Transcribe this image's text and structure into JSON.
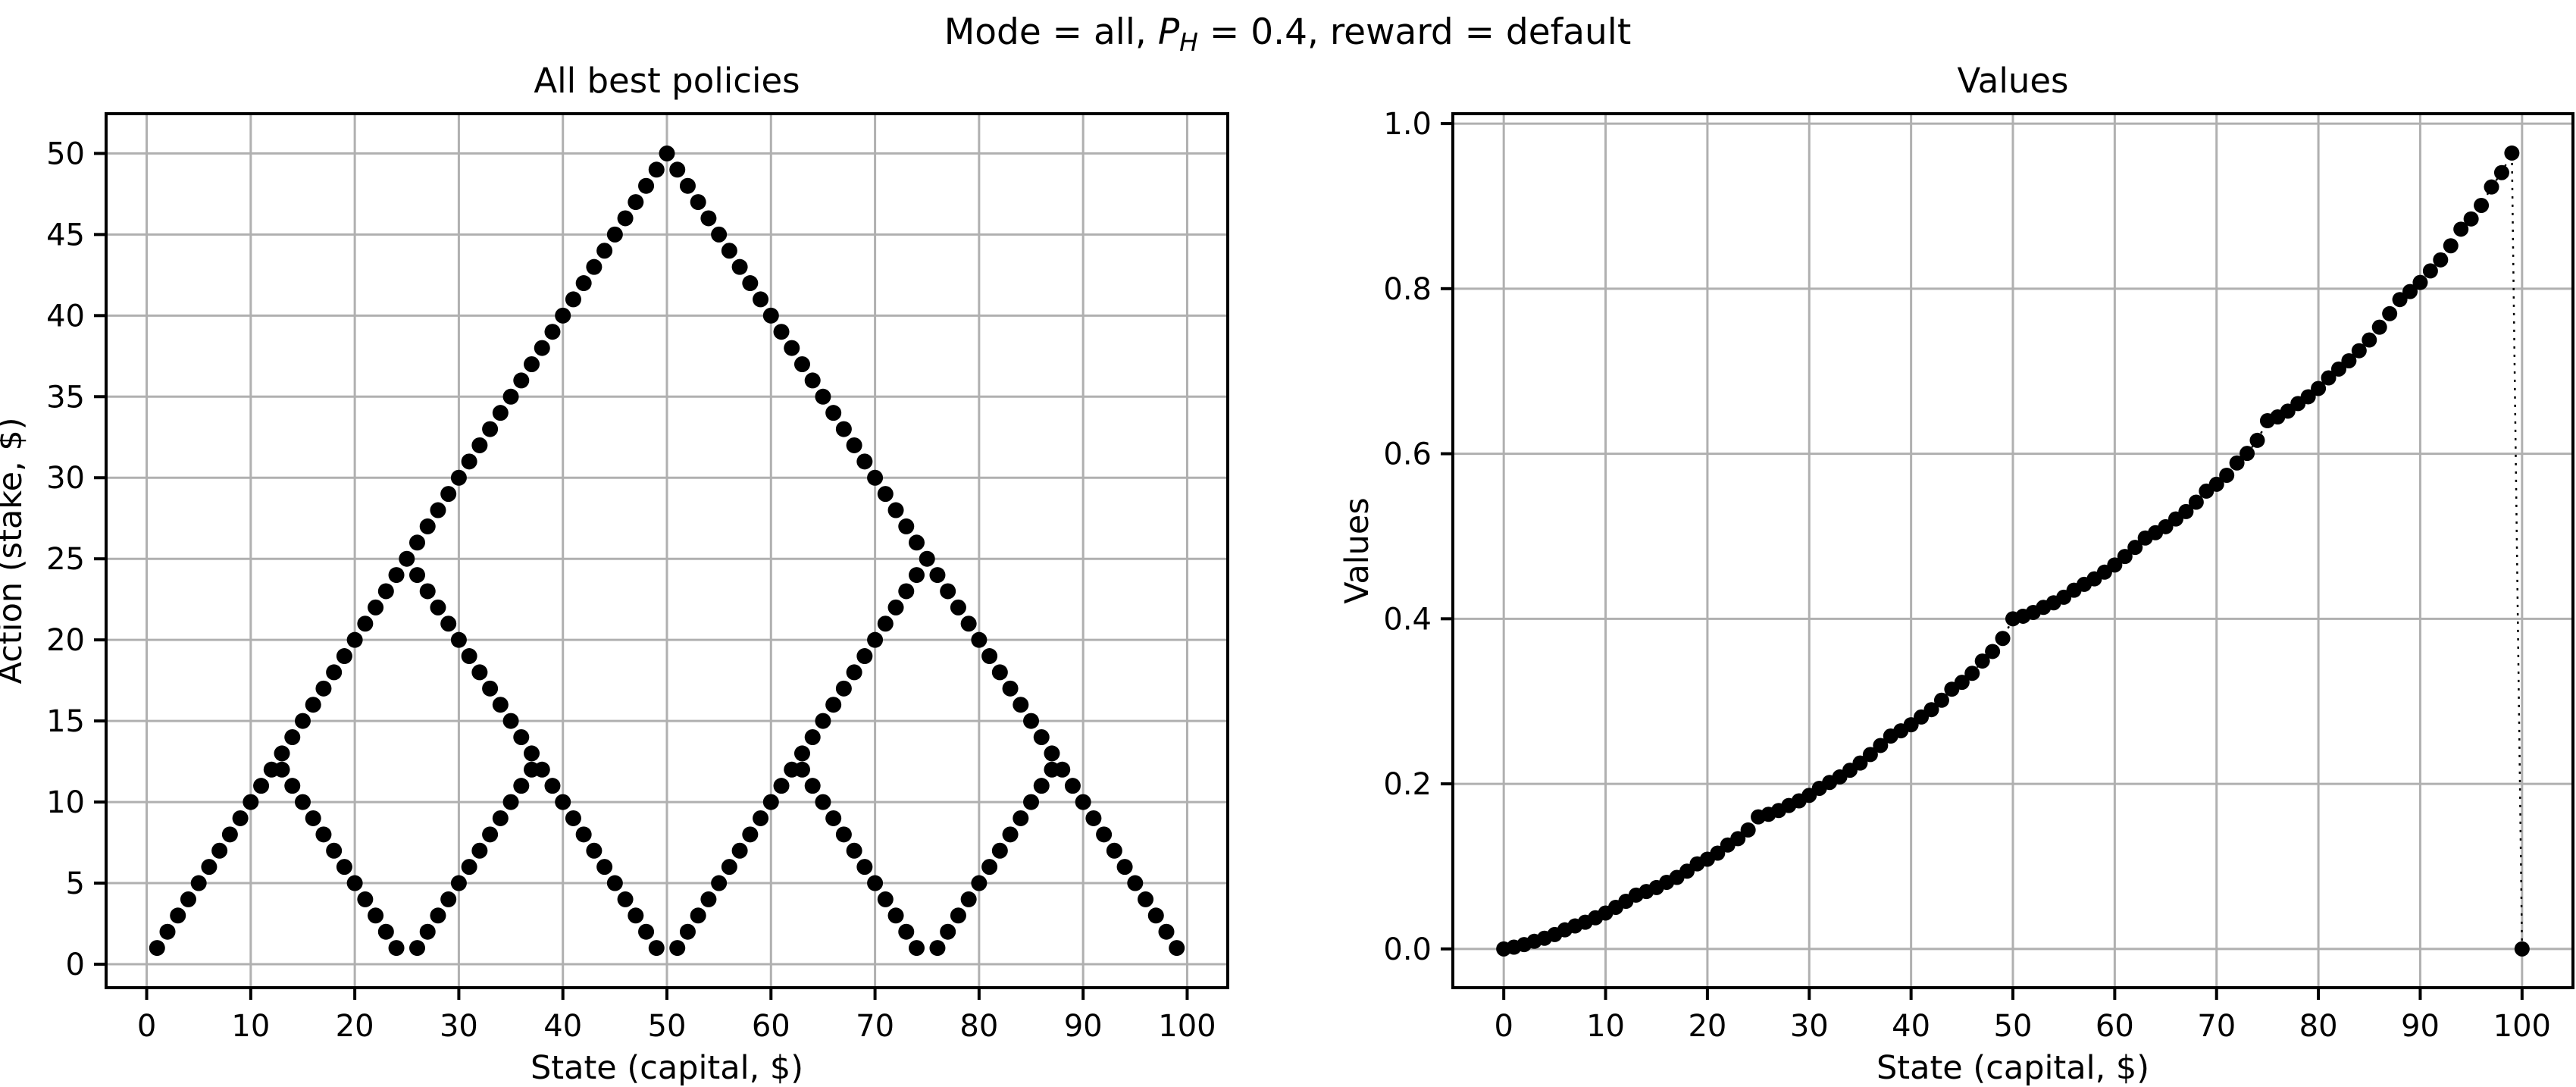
{
  "figure": {
    "suptitle": {
      "plain": "Mode = all, P_H = 0.4, reward = default",
      "parts": [
        {
          "text": "Mode = all, ",
          "style": "normal"
        },
        {
          "text": "P",
          "style": "italic"
        },
        {
          "text": "H",
          "style": "italic-sub"
        },
        {
          "text": " = 0.4, reward = default",
          "style": "normal"
        }
      ]
    },
    "colors": {
      "background": "#ffffff",
      "marker": "#000000",
      "grid": "#b0b0b0",
      "spine": "#000000",
      "text": "#000000"
    }
  },
  "chart_data": [
    {
      "type": "scatter",
      "title": "All best policies",
      "xlabel": "State (capital, $)",
      "ylabel": "Action (stake, $)",
      "xlim": [
        -3.9,
        103.9
      ],
      "ylim": [
        -1.45,
        52.45
      ],
      "grid": true,
      "marker": "filled-black-circle",
      "xticks": {
        "values": [
          0,
          10,
          20,
          30,
          40,
          50,
          60,
          70,
          80,
          90,
          100
        ],
        "labels": [
          "0",
          "10",
          "20",
          "30",
          "40",
          "50",
          "60",
          "70",
          "80",
          "90",
          "100"
        ]
      },
      "yticks": {
        "values": [
          0,
          5,
          10,
          15,
          20,
          25,
          30,
          35,
          40,
          45,
          50
        ],
        "labels": [
          "0",
          "5",
          "10",
          "15",
          "20",
          "25",
          "30",
          "35",
          "40",
          "45",
          "50"
        ]
      },
      "states_start_at": 1,
      "actions_by_state": [
        [
          1
        ],
        [
          2
        ],
        [
          3
        ],
        [
          4
        ],
        [
          5
        ],
        [
          6
        ],
        [
          7
        ],
        [
          8
        ],
        [
          9
        ],
        [
          10
        ],
        [
          11
        ],
        [
          12
        ],
        [
          13,
          12
        ],
        [
          14,
          11
        ],
        [
          15,
          10
        ],
        [
          16,
          9
        ],
        [
          17,
          8
        ],
        [
          18,
          7
        ],
        [
          19,
          6
        ],
        [
          20,
          5
        ],
        [
          21,
          4
        ],
        [
          22,
          3
        ],
        [
          23,
          2
        ],
        [
          24,
          1
        ],
        [
          25
        ],
        [
          26,
          24,
          1
        ],
        [
          27,
          23,
          2
        ],
        [
          28,
          22,
          3
        ],
        [
          29,
          21,
          4
        ],
        [
          30,
          20,
          5
        ],
        [
          31,
          19,
          6
        ],
        [
          32,
          18,
          7
        ],
        [
          33,
          17,
          8
        ],
        [
          34,
          16,
          9
        ],
        [
          35,
          15,
          10
        ],
        [
          36,
          14,
          11
        ],
        [
          37,
          13,
          12
        ],
        [
          38,
          12
        ],
        [
          39,
          11
        ],
        [
          40,
          10
        ],
        [
          41,
          9
        ],
        [
          42,
          8
        ],
        [
          43,
          7
        ],
        [
          44,
          6
        ],
        [
          45,
          5
        ],
        [
          46,
          4
        ],
        [
          47,
          3
        ],
        [
          48,
          2
        ],
        [
          49,
          1
        ],
        [
          50
        ],
        [
          49,
          1
        ],
        [
          48,
          2
        ],
        [
          47,
          3
        ],
        [
          46,
          4
        ],
        [
          45,
          5
        ],
        [
          44,
          6
        ],
        [
          43,
          7
        ],
        [
          42,
          8
        ],
        [
          41,
          9
        ],
        [
          40,
          10
        ],
        [
          39,
          11
        ],
        [
          38,
          12
        ],
        [
          37,
          13,
          12
        ],
        [
          36,
          14,
          11
        ],
        [
          35,
          15,
          10
        ],
        [
          34,
          16,
          9
        ],
        [
          33,
          17,
          8
        ],
        [
          32,
          18,
          7
        ],
        [
          31,
          19,
          6
        ],
        [
          30,
          20,
          5
        ],
        [
          29,
          21,
          4
        ],
        [
          28,
          22,
          3
        ],
        [
          27,
          23,
          2
        ],
        [
          26,
          24,
          1
        ],
        [
          25
        ],
        [
          24,
          1
        ],
        [
          23,
          2
        ],
        [
          22,
          3
        ],
        [
          21,
          4
        ],
        [
          20,
          5
        ],
        [
          19,
          6
        ],
        [
          18,
          7
        ],
        [
          17,
          8
        ],
        [
          16,
          9
        ],
        [
          15,
          10
        ],
        [
          14,
          11
        ],
        [
          13,
          12
        ],
        [
          12
        ],
        [
          11
        ],
        [
          10
        ],
        [
          9
        ],
        [
          8
        ],
        [
          7
        ],
        [
          6
        ],
        [
          5
        ],
        [
          4
        ],
        [
          3
        ],
        [
          2
        ],
        [
          1
        ]
      ]
    },
    {
      "type": "line",
      "title": "Values",
      "xlabel": "State (capital, $)",
      "ylabel": "Values",
      "xlim": [
        -5,
        105
      ],
      "ylim": [
        -0.047,
        1.012
      ],
      "grid": true,
      "marker": "filled-black-circle",
      "linestyle": "dotted",
      "xticks": {
        "values": [
          0,
          10,
          20,
          30,
          40,
          50,
          60,
          70,
          80,
          90,
          100
        ],
        "labels": [
          "0",
          "10",
          "20",
          "30",
          "40",
          "50",
          "60",
          "70",
          "80",
          "90",
          "100"
        ]
      },
      "yticks": {
        "values": [
          0.0,
          0.2,
          0.4,
          0.6,
          0.8,
          1.0
        ],
        "labels": [
          "0.0",
          "0.2",
          "0.4",
          "0.6",
          "0.8",
          "1.0"
        ]
      },
      "x_start": 0,
      "x_step": 1,
      "values": [
        0.0,
        0.0021,
        0.0052,
        0.0092,
        0.0129,
        0.0174,
        0.0231,
        0.0278,
        0.0323,
        0.0377,
        0.0435,
        0.0504,
        0.0577,
        0.0652,
        0.0695,
        0.0744,
        0.0807,
        0.0866,
        0.0942,
        0.1031,
        0.1087,
        0.116,
        0.1259,
        0.1336,
        0.1441,
        0.16,
        0.1631,
        0.1677,
        0.1738,
        0.1794,
        0.1861,
        0.1946,
        0.2017,
        0.2084,
        0.2165,
        0.2252,
        0.2355,
        0.2465,
        0.2579,
        0.2643,
        0.2716,
        0.281,
        0.2899,
        0.3013,
        0.3147,
        0.323,
        0.3339,
        0.3488,
        0.3604,
        0.3762,
        0.4,
        0.4031,
        0.4077,
        0.4138,
        0.4194,
        0.4261,
        0.4346,
        0.4417,
        0.4484,
        0.4565,
        0.4652,
        0.4755,
        0.4865,
        0.4979,
        0.5043,
        0.5116,
        0.521,
        0.5299,
        0.5413,
        0.5547,
        0.563,
        0.5739,
        0.5888,
        0.6004,
        0.6162,
        0.64,
        0.6446,
        0.6516,
        0.6608,
        0.669,
        0.6791,
        0.6919,
        0.7026,
        0.7126,
        0.7248,
        0.7378,
        0.7533,
        0.7697,
        0.7868,
        0.7965,
        0.8075,
        0.8215,
        0.8349,
        0.852,
        0.8721,
        0.8845,
        0.9009,
        0.9232,
        0.9406,
        0.9643,
        0.0
      ]
    }
  ]
}
